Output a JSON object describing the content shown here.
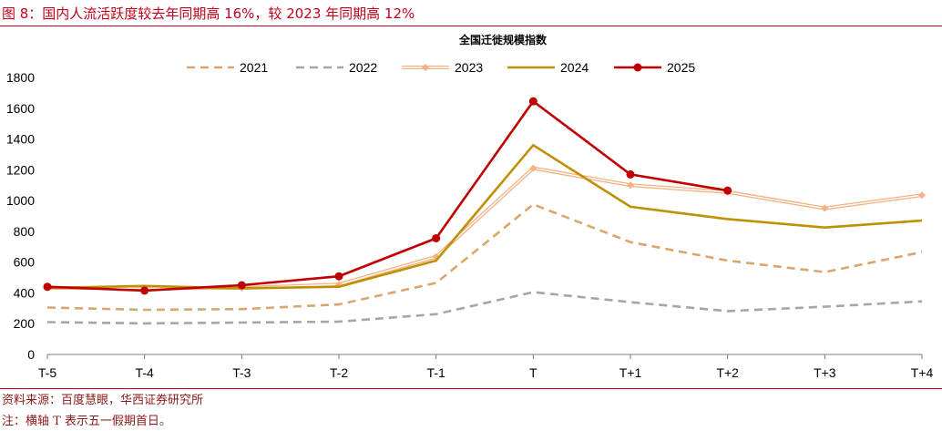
{
  "figure": {
    "title": "图 8：国内人流活跃度较去年同期高 16%，较 2023 年同期高 12%",
    "source": "资料来源：百度慧眼，华西证券研究所",
    "note": "注：横轴 T 表示五一假期首日。"
  },
  "colors": {
    "title_red": "#c0001a",
    "s2021": "#d9a66b",
    "s2022": "#a6a6a6",
    "s2023": "#f4b183",
    "s2024": "#bf9000",
    "s2025": "#c00000"
  },
  "chart_data": {
    "type": "line",
    "title": "全国迁徙规模指数",
    "xlabel": "",
    "ylabel": "",
    "categories": [
      "T-5",
      "T-4",
      "T-3",
      "T-2",
      "T-1",
      "T",
      "T+1",
      "T+2",
      "T+3",
      "T+4"
    ],
    "ylim": [
      0,
      1800
    ],
    "yticks": [
      0,
      200,
      400,
      600,
      800,
      1000,
      1200,
      1400,
      1600,
      1800
    ],
    "grid": false,
    "legend_position": "top",
    "series": [
      {
        "name": "2021",
        "style": "dashed",
        "marker": "none",
        "color": "#d9a66b",
        "values": [
          305,
          290,
          295,
          325,
          465,
          975,
          730,
          610,
          535,
          665
        ]
      },
      {
        "name": "2022",
        "style": "dashed",
        "marker": "none",
        "color": "#a6a6a6",
        "values": [
          210,
          202,
          207,
          213,
          262,
          405,
          340,
          282,
          310,
          345
        ]
      },
      {
        "name": "2023",
        "style": "double",
        "marker": "diamond",
        "color": "#f4b183",
        "values": [
          432,
          430,
          432,
          455,
          635,
          1210,
          1100,
          1055,
          950,
          1035
        ]
      },
      {
        "name": "2024",
        "style": "solid",
        "marker": "none",
        "color": "#bf9000",
        "values": [
          432,
          445,
          430,
          440,
          610,
          1360,
          960,
          880,
          825,
          870
        ]
      },
      {
        "name": "2025",
        "style": "solid",
        "marker": "circle",
        "color": "#c00000",
        "values": [
          440,
          415,
          450,
          508,
          755,
          1645,
          1170,
          1065,
          null,
          null
        ]
      }
    ]
  }
}
